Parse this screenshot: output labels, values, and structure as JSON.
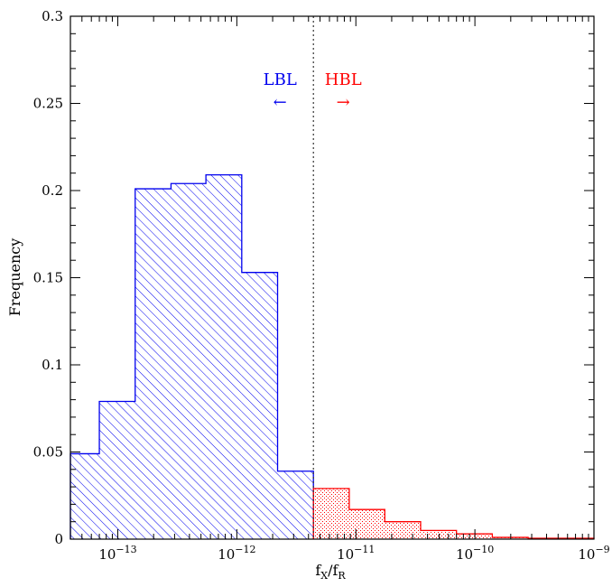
{
  "chart_data": {
    "type": "bar",
    "title": "",
    "xlabel": "f_X/f_R",
    "xlabel_parts": {
      "f1": "f",
      "sub1": "X",
      "slash": "/",
      "f2": "f",
      "sub2": "R"
    },
    "ylabel": "Frequency",
    "x_scale": "log",
    "xlim": [
      4e-14,
      1e-09
    ],
    "ylim": [
      0,
      0.3
    ],
    "y_ticks": [
      0,
      0.05,
      0.1,
      0.15,
      0.2,
      0.25,
      0.3
    ],
    "y_tick_labels": [
      "0",
      "0.05",
      "0.1",
      "0.15",
      "0.2",
      "0.25",
      "0.3"
    ],
    "x_tick_labels": [
      {
        "value": 1e-13,
        "base": "10",
        "exp": "−13"
      },
      {
        "value": 1e-12,
        "base": "10",
        "exp": "−12"
      },
      {
        "value": 1e-11,
        "base": "10",
        "exp": "−11"
      },
      {
        "value": 1e-10,
        "base": "10",
        "exp": "−10"
      },
      {
        "value": 1e-09,
        "base": "10",
        "exp": "−9"
      }
    ],
    "divider_x": 4.4e-12,
    "series": [
      {
        "name": "LBL",
        "color": "#0000ee",
        "fill": "hatch",
        "bins": [
          {
            "x0": 4e-14,
            "x1": 7e-14,
            "value": 0.049
          },
          {
            "x0": 7e-14,
            "x1": 1.4e-13,
            "value": 0.079
          },
          {
            "x0": 1.4e-13,
            "x1": 2.8e-13,
            "value": 0.201
          },
          {
            "x0": 2.8e-13,
            "x1": 5.5e-13,
            "value": 0.204
          },
          {
            "x0": 5.5e-13,
            "x1": 1.1e-12,
            "value": 0.209
          },
          {
            "x0": 1.1e-12,
            "x1": 2.2e-12,
            "value": 0.153
          },
          {
            "x0": 2.2e-12,
            "x1": 4.4e-12,
            "value": 0.039
          }
        ]
      },
      {
        "name": "HBL",
        "color": "#ff0000",
        "fill": "dots",
        "bins": [
          {
            "x0": 4.4e-12,
            "x1": 8.8e-12,
            "value": 0.029
          },
          {
            "x0": 8.8e-12,
            "x1": 1.75e-11,
            "value": 0.017
          },
          {
            "x0": 1.75e-11,
            "x1": 3.5e-11,
            "value": 0.01
          },
          {
            "x0": 3.5e-11,
            "x1": 7e-11,
            "value": 0.005
          },
          {
            "x0": 7e-11,
            "x1": 1.4e-10,
            "value": 0.003
          },
          {
            "x0": 1.4e-10,
            "x1": 2.8e-10,
            "value": 0.001
          },
          {
            "x0": 2.8e-10,
            "x1": 5.6e-10,
            "value": 0.0005
          },
          {
            "x0": 5.6e-10,
            "x1": 1e-09,
            "value": 0.0005
          }
        ]
      }
    ],
    "annotations": [
      {
        "text": "LBL",
        "arrow": "←",
        "color": "#0000ee",
        "series": "LBL"
      },
      {
        "text": "HBL",
        "arrow": "→",
        "color": "#ff0000",
        "series": "HBL"
      }
    ]
  }
}
